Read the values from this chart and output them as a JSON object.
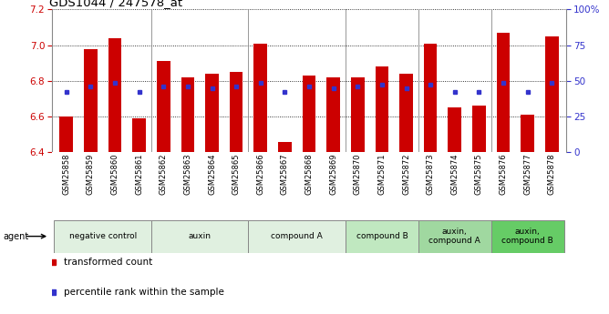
{
  "title": "GDS1044 / 247578_at",
  "samples": [
    "GSM25858",
    "GSM25859",
    "GSM25860",
    "GSM25861",
    "GSM25862",
    "GSM25863",
    "GSM25864",
    "GSM25865",
    "GSM25866",
    "GSM25867",
    "GSM25868",
    "GSM25869",
    "GSM25870",
    "GSM25871",
    "GSM25872",
    "GSM25873",
    "GSM25874",
    "GSM25875",
    "GSM25876",
    "GSM25877",
    "GSM25878"
  ],
  "bar_values": [
    6.6,
    6.98,
    7.04,
    6.59,
    6.91,
    6.82,
    6.84,
    6.85,
    7.01,
    6.46,
    6.83,
    6.82,
    6.82,
    6.88,
    6.84,
    7.01,
    6.65,
    6.66,
    7.07,
    6.61,
    7.05
  ],
  "blue_values": [
    6.74,
    6.77,
    6.79,
    6.74,
    6.77,
    6.77,
    6.76,
    6.77,
    6.79,
    6.74,
    6.77,
    6.76,
    6.77,
    6.78,
    6.76,
    6.78,
    6.74,
    6.74,
    6.79,
    6.74,
    6.79
  ],
  "ylim_left": [
    6.4,
    7.2
  ],
  "ylim_right": [
    0,
    100
  ],
  "yticks_left": [
    6.4,
    6.6,
    6.8,
    7.0,
    7.2
  ],
  "yticks_right": [
    0,
    25,
    50,
    75,
    100
  ],
  "bar_color": "#cc0000",
  "blue_color": "#3333cc",
  "bar_bottom": 6.4,
  "groups": [
    {
      "label": "negative control",
      "start": 0,
      "end": 4,
      "color": "#e0f0e0"
    },
    {
      "label": "auxin",
      "start": 4,
      "end": 8,
      "color": "#e0f0e0"
    },
    {
      "label": "compound A",
      "start": 8,
      "end": 12,
      "color": "#e0f0e0"
    },
    {
      "label": "compound B",
      "start": 12,
      "end": 15,
      "color": "#c0e8c0"
    },
    {
      "label": "auxin,\ncompound A",
      "start": 15,
      "end": 18,
      "color": "#a0d8a0"
    },
    {
      "label": "auxin,\ncompound B",
      "start": 18,
      "end": 21,
      "color": "#66cc66"
    }
  ],
  "legend_items": [
    {
      "label": "transformed count",
      "color": "#cc0000"
    },
    {
      "label": "percentile rank within the sample",
      "color": "#3333cc"
    }
  ]
}
